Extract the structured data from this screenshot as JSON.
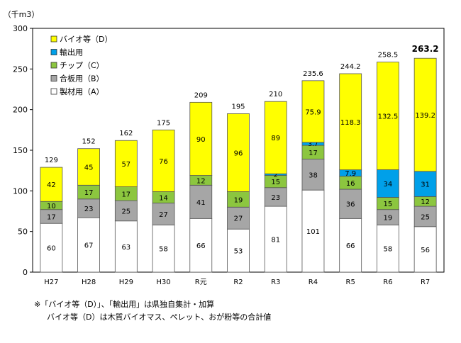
{
  "notes": [
    "※「バイオ等（D）」、「輸出用」は県独自集計・加算",
    "バイオ等（D）は木質バイオマス、ペレット、おが粉等の合計値"
  ],
  "chart_data": {
    "type": "bar",
    "stacked": true,
    "unit_label": "（千m3）",
    "categories": [
      "H27",
      "H28",
      "H29",
      "H30",
      "R元",
      "R2",
      "R3",
      "R4",
      "R5",
      "R6",
      "R7"
    ],
    "ylim": [
      0,
      300
    ],
    "yticks": [
      0,
      50,
      100,
      150,
      200,
      250,
      300
    ],
    "grid": false,
    "legend_position": "top-left",
    "series": [
      {
        "name": "製材用（A）",
        "color": "#ffffff",
        "values": [
          60,
          67,
          63,
          58,
          66,
          53,
          81,
          101,
          66,
          58,
          56
        ],
        "labels": [
          "60",
          "67",
          "63",
          "58",
          "66",
          "53",
          "81",
          "101",
          "66",
          "58",
          "56"
        ]
      },
      {
        "name": "合板用（B）",
        "color": "#a6a6a6",
        "values": [
          17,
          23,
          25,
          27,
          41,
          27,
          23,
          38,
          36,
          19,
          25
        ],
        "labels": [
          "17",
          "23",
          "25",
          "27",
          "41",
          "27",
          "23",
          "38",
          "36",
          "19",
          "25"
        ]
      },
      {
        "name": "チップ（C）",
        "color": "#8cc63f",
        "values": [
          10,
          17,
          17,
          14,
          12,
          19,
          15,
          17,
          16,
          15,
          12
        ],
        "labels": [
          "10",
          "17",
          "17",
          "14",
          "12",
          "19",
          "15",
          "17",
          "16",
          "15",
          "12"
        ]
      },
      {
        "name": "輸出用",
        "color": "#00a0e9",
        "values": [
          0,
          0,
          0,
          0,
          0,
          0,
          2,
          3.7,
          7.9,
          34,
          31
        ],
        "labels": [
          "",
          "",
          "",
          "",
          "",
          "",
          "2",
          "3.7",
          "7.9",
          "34",
          "31"
        ]
      },
      {
        "name": "バイオ等（D）",
        "color": "#ffff00",
        "values": [
          42,
          45,
          57,
          76,
          90,
          96,
          89,
          75.9,
          118.3,
          132.5,
          139.2
        ],
        "labels": [
          "42",
          "45",
          "57",
          "76",
          "90",
          "96",
          "89",
          "75.9",
          "118.3",
          "132.5",
          "139.2"
        ]
      }
    ],
    "totals": [
      "129",
      "152",
      "162",
      "175",
      "209",
      "195",
      "210",
      "235.6",
      "244.2",
      "258.5",
      "263.2"
    ],
    "legend_order": [
      "バイオ等（D）",
      "輸出用",
      "チップ（C）",
      "合板用（B）",
      "製材用（A）"
    ]
  }
}
